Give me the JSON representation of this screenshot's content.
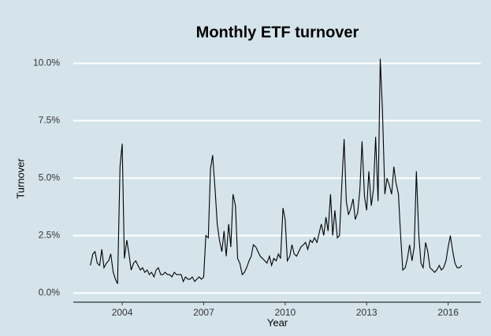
{
  "chart_data": {
    "type": "line",
    "title": "Monthly ETF turnover",
    "x_label": "Year",
    "y_label": "Turnover",
    "x": [
      2002.83,
      2002.92,
      2003.0,
      2003.08,
      2003.17,
      2003.25,
      2003.33,
      2003.42,
      2003.5,
      2003.58,
      2003.67,
      2003.75,
      2003.83,
      2003.92,
      2004.0,
      2004.08,
      2004.17,
      2004.25,
      2004.33,
      2004.42,
      2004.5,
      2004.58,
      2004.67,
      2004.75,
      2004.83,
      2004.92,
      2005.0,
      2005.08,
      2005.17,
      2005.25,
      2005.33,
      2005.42,
      2005.5,
      2005.58,
      2005.67,
      2005.75,
      2005.83,
      2005.92,
      2006.0,
      2006.08,
      2006.17,
      2006.25,
      2006.33,
      2006.42,
      2006.5,
      2006.58,
      2006.67,
      2006.75,
      2006.83,
      2006.92,
      2007.0,
      2007.08,
      2007.17,
      2007.25,
      2007.33,
      2007.42,
      2007.5,
      2007.58,
      2007.67,
      2007.75,
      2007.83,
      2007.92,
      2008.0,
      2008.08,
      2008.17,
      2008.25,
      2008.33,
      2008.42,
      2008.5,
      2008.58,
      2008.67,
      2008.75,
      2008.83,
      2008.92,
      2009.0,
      2009.08,
      2009.17,
      2009.25,
      2009.33,
      2009.42,
      2009.5,
      2009.58,
      2009.67,
      2009.75,
      2009.83,
      2009.92,
      2010.0,
      2010.08,
      2010.17,
      2010.25,
      2010.33,
      2010.42,
      2010.5,
      2010.58,
      2010.67,
      2010.75,
      2010.83,
      2010.92,
      2011.0,
      2011.08,
      2011.17,
      2011.25,
      2011.33,
      2011.42,
      2011.5,
      2011.58,
      2011.67,
      2011.75,
      2011.83,
      2011.92,
      2012.0,
      2012.08,
      2012.17,
      2012.25,
      2012.33,
      2012.42,
      2012.5,
      2012.58,
      2012.67,
      2012.75,
      2012.83,
      2012.92,
      2013.0,
      2013.08,
      2013.17,
      2013.25,
      2013.33,
      2013.42,
      2013.5,
      2013.58,
      2013.67,
      2013.75,
      2013.83,
      2013.92,
      2014.0,
      2014.08,
      2014.17,
      2014.25,
      2014.33,
      2014.42,
      2014.5,
      2014.58,
      2014.67,
      2014.75,
      2014.83,
      2014.92,
      2015.0,
      2015.08,
      2015.17,
      2015.25,
      2015.33,
      2015.42,
      2015.5,
      2015.58,
      2015.67,
      2015.75,
      2015.83,
      2015.92,
      2016.0,
      2016.08,
      2016.17,
      2016.25,
      2016.33,
      2016.42,
      2016.5
    ],
    "series": [
      {
        "name": "Turnover",
        "color": "#000000",
        "values": [
          1.2,
          1.7,
          1.8,
          1.3,
          1.2,
          1.9,
          1.1,
          1.3,
          1.4,
          1.7,
          0.9,
          0.6,
          0.4,
          5.5,
          6.5,
          1.5,
          2.3,
          1.7,
          1.0,
          1.3,
          1.4,
          1.2,
          1.0,
          1.1,
          0.9,
          1.0,
          0.8,
          0.9,
          0.7,
          1.0,
          1.1,
          0.8,
          0.8,
          0.9,
          0.8,
          0.8,
          0.7,
          0.9,
          0.8,
          0.8,
          0.8,
          0.5,
          0.7,
          0.6,
          0.6,
          0.7,
          0.5,
          0.6,
          0.7,
          0.6,
          0.7,
          2.5,
          2.4,
          5.4,
          6.0,
          4.5,
          3.0,
          2.3,
          1.8,
          2.7,
          1.6,
          3.0,
          2.0,
          4.3,
          3.8,
          1.5,
          1.3,
          0.8,
          0.9,
          1.1,
          1.4,
          1.6,
          2.1,
          2.0,
          1.8,
          1.6,
          1.5,
          1.4,
          1.3,
          1.6,
          1.2,
          1.5,
          1.4,
          1.7,
          1.5,
          3.7,
          3.2,
          1.4,
          1.6,
          2.1,
          1.7,
          1.6,
          1.8,
          2.0,
          2.1,
          2.2,
          1.9,
          2.3,
          2.2,
          2.4,
          2.2,
          2.6,
          3.0,
          2.5,
          3.3,
          2.7,
          4.3,
          2.5,
          3.6,
          2.4,
          2.5,
          4.6,
          6.7,
          4.0,
          3.4,
          3.7,
          4.1,
          3.2,
          3.5,
          4.5,
          6.6,
          4.2,
          3.6,
          5.3,
          3.8,
          4.5,
          6.8,
          4.0,
          10.2,
          8.0,
          4.3,
          5.0,
          4.7,
          4.3,
          5.5,
          4.8,
          4.3,
          2.5,
          1.0,
          1.1,
          1.5,
          2.1,
          1.4,
          2.0,
          5.3,
          2.5,
          1.3,
          1.1,
          2.2,
          1.8,
          1.1,
          1.0,
          0.9,
          1.0,
          1.2,
          1.0,
          1.1,
          1.4,
          2.0,
          2.5,
          1.8,
          1.3,
          1.1,
          1.1,
          1.2
        ]
      }
    ],
    "xlim": [
      2002.2,
      2017.2
    ],
    "xticks": [
      2004,
      2007,
      2010,
      2013,
      2016
    ],
    "ylim": [
      -0.4,
      10.7
    ],
    "yticks": [
      {
        "value": 0,
        "label": "0.0%"
      },
      {
        "value": 2.5,
        "label": "2.5%"
      },
      {
        "value": 5,
        "label": "5.0%"
      },
      {
        "value": 7.5,
        "label": "7.5%"
      },
      {
        "value": 10,
        "label": "10.0%"
      }
    ],
    "grid": true
  }
}
